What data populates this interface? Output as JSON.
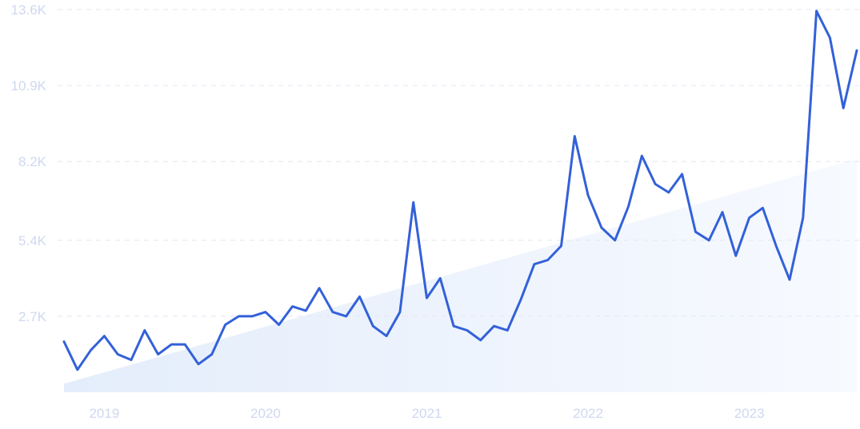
{
  "chart_data": {
    "type": "line",
    "title": "",
    "xlabel": "",
    "ylabel": "",
    "ylim": [
      0,
      13600
    ],
    "grid": true,
    "legend": "none",
    "y_ticks": [
      {
        "value": 2700,
        "label": "2.7K"
      },
      {
        "value": 5400,
        "label": "5.4K"
      },
      {
        "value": 8200,
        "label": "8.2K"
      },
      {
        "value": 10900,
        "label": "10.9K"
      },
      {
        "value": 13600,
        "label": "13.6K"
      }
    ],
    "x_ticks": [
      {
        "value": "2019-01",
        "label": "2019"
      },
      {
        "value": "2020-01",
        "label": "2020"
      },
      {
        "value": "2021-01",
        "label": "2021"
      },
      {
        "value": "2022-01",
        "label": "2022"
      },
      {
        "value": "2023-01",
        "label": "2023"
      }
    ],
    "x_range": [
      "2018-10",
      "2023-09"
    ],
    "trend": {
      "start": {
        "x": "2018-10",
        "y": 300
      },
      "end": {
        "x": "2023-09",
        "y": 8300
      }
    },
    "series": [
      {
        "x": [
          "2018-10",
          "2018-11",
          "2018-12",
          "2019-01",
          "2019-02",
          "2019-03",
          "2019-04",
          "2019-05",
          "2019-06",
          "2019-07",
          "2019-08",
          "2019-09",
          "2019-10",
          "2019-11",
          "2019-12",
          "2020-01",
          "2020-02",
          "2020-03",
          "2020-04",
          "2020-05",
          "2020-06",
          "2020-07",
          "2020-08",
          "2020-09",
          "2020-10",
          "2020-11",
          "2020-12",
          "2021-01",
          "2021-02",
          "2021-03",
          "2021-04",
          "2021-05",
          "2021-06",
          "2021-07",
          "2021-08",
          "2021-09",
          "2021-10",
          "2021-11",
          "2021-12",
          "2022-01",
          "2022-02",
          "2022-03",
          "2022-04",
          "2022-05",
          "2022-06",
          "2022-07",
          "2022-08",
          "2022-09",
          "2022-10",
          "2022-11",
          "2022-12",
          "2023-01",
          "2023-02",
          "2023-03",
          "2023-04",
          "2023-05",
          "2023-06",
          "2023-07",
          "2023-08",
          "2023-09"
        ],
        "values": [
          1800,
          800,
          1500,
          2000,
          1350,
          1150,
          2200,
          1350,
          1700,
          1700,
          1000,
          1350,
          2400,
          2700,
          2700,
          2850,
          2400,
          3050,
          2900,
          3700,
          2850,
          2700,
          3400,
          2350,
          2000,
          2850,
          6750,
          3350,
          4050,
          2350,
          2200,
          1850,
          2350,
          2200,
          3300,
          4550,
          4700,
          5200,
          9100,
          7000,
          5850,
          5400,
          6600,
          8400,
          7400,
          7100,
          7750,
          5700,
          5400,
          6400,
          4850,
          6200,
          6550,
          5200,
          4000,
          6200,
          13550,
          12600,
          10100,
          12150
        ]
      }
    ]
  }
}
